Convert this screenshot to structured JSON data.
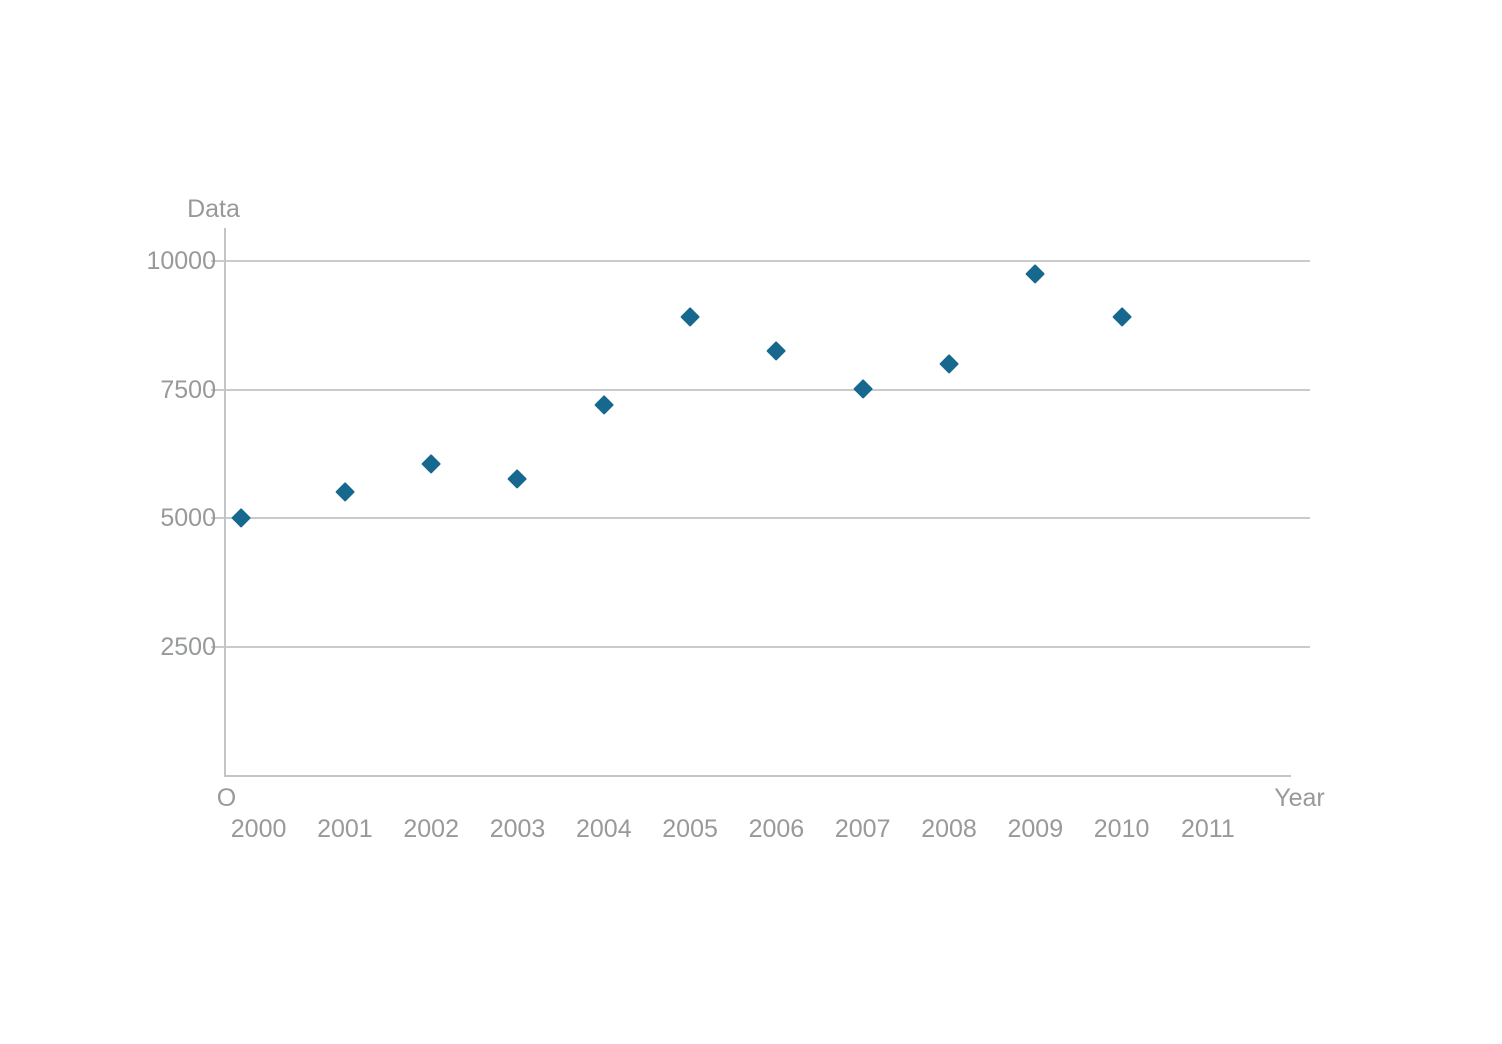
{
  "chart_data": {
    "type": "scatter",
    "title": "",
    "xlabel": "Year",
    "ylabel": "Data",
    "origin_label": "O",
    "grid": true,
    "legend": false,
    "marker": "diamond",
    "ylim": [
      0,
      10640
    ],
    "y_ticks": [
      {
        "value": 10000,
        "label": "10000"
      },
      {
        "value": 7500,
        "label": "7500"
      },
      {
        "value": 5000,
        "label": "5000"
      },
      {
        "value": 2500,
        "label": "2500"
      }
    ],
    "x_ticks": [
      {
        "year": 2000,
        "label": "2000"
      },
      {
        "year": 2001,
        "label": "2001"
      },
      {
        "year": 2002,
        "label": "2002"
      },
      {
        "year": 2003,
        "label": "2003"
      },
      {
        "year": 2004,
        "label": "2004"
      },
      {
        "year": 2005,
        "label": "2005"
      },
      {
        "year": 2006,
        "label": "2006"
      },
      {
        "year": 2007,
        "label": "2007"
      },
      {
        "year": 2008,
        "label": "2008"
      },
      {
        "year": 2009,
        "label": "2009"
      },
      {
        "year": 2010,
        "label": "2010"
      },
      {
        "year": 2011,
        "label": "2011"
      }
    ],
    "points": [
      {
        "year": 2000,
        "value": 5000
      },
      {
        "year": 2001,
        "value": 5500
      },
      {
        "year": 2002,
        "value": 6050
      },
      {
        "year": 2003,
        "value": 5750
      },
      {
        "year": 2004,
        "value": 7200
      },
      {
        "year": 2005,
        "value": 8900
      },
      {
        "year": 2006,
        "value": 8250
      },
      {
        "year": 2007,
        "value": 7500
      },
      {
        "year": 2008,
        "value": 8000
      },
      {
        "year": 2009,
        "value": 9750
      },
      {
        "year": 2010,
        "value": 8900
      }
    ],
    "colors": {
      "marker": "#16688e",
      "grid": "#c9cacb",
      "axis": "#c2c4c5",
      "text": "#97999b"
    }
  }
}
